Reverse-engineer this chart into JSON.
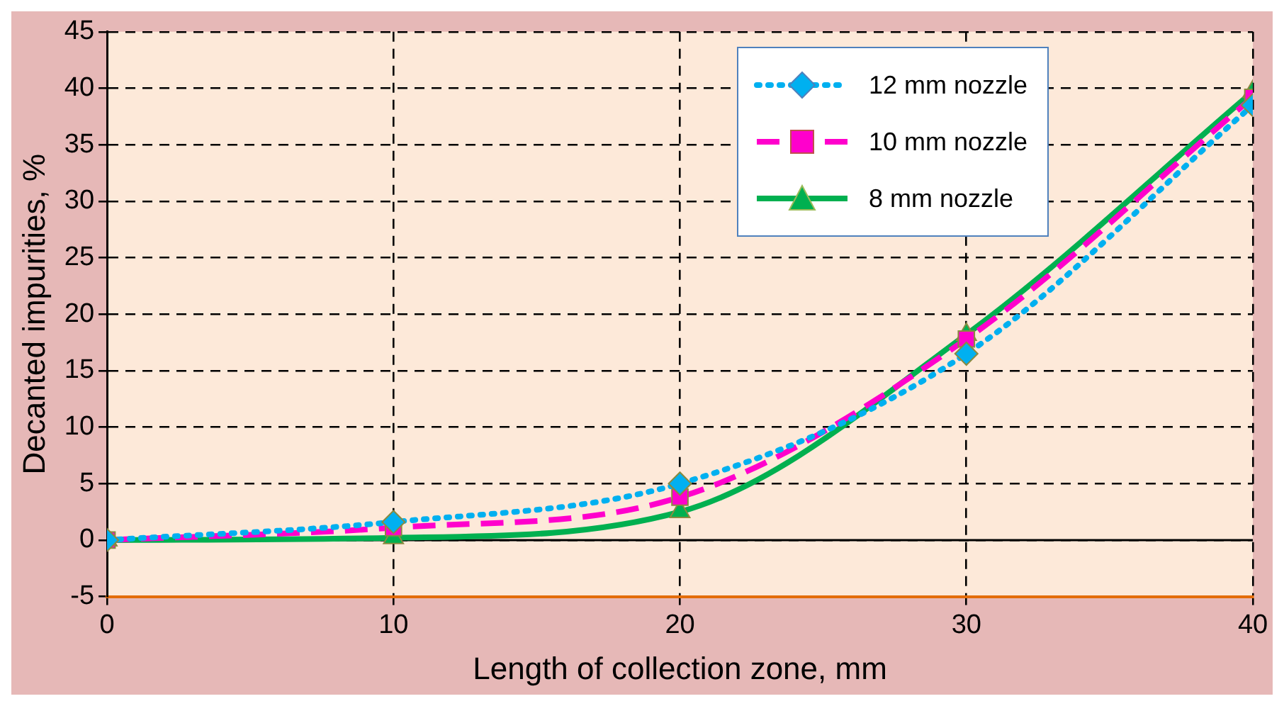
{
  "chart_data": {
    "type": "line",
    "xlabel": "Length of collection zone, mm",
    "ylabel": "Decanted impurities, %",
    "x": [
      0,
      10,
      20,
      30,
      40
    ],
    "series": [
      {
        "name": "12 mm nozzle",
        "color": "#00b0f0",
        "values": [
          0,
          1.6,
          5,
          16.5,
          38.5
        ],
        "marker": "diamond",
        "line_style": "dotted"
      },
      {
        "name": "10 mm nozzle",
        "color": "#ff00cc",
        "values": [
          0,
          1.1,
          3.8,
          17.8,
          39.2
        ],
        "marker": "square",
        "line_style": "dashed"
      },
      {
        "name": "8 mm nozzle",
        "color": "#00b050",
        "values": [
          0,
          0.2,
          2.5,
          18.2,
          39.7
        ],
        "marker": "triangle",
        "line_style": "solid"
      }
    ],
    "xlim": [
      0,
      40
    ],
    "xticks": [
      0,
      10,
      20,
      30,
      40
    ],
    "ylim": [
      -5,
      45
    ],
    "yticks": [
      -5,
      0,
      5,
      10,
      15,
      20,
      25,
      30,
      35,
      40,
      45
    ],
    "grid": true,
    "legend": "top right"
  }
}
